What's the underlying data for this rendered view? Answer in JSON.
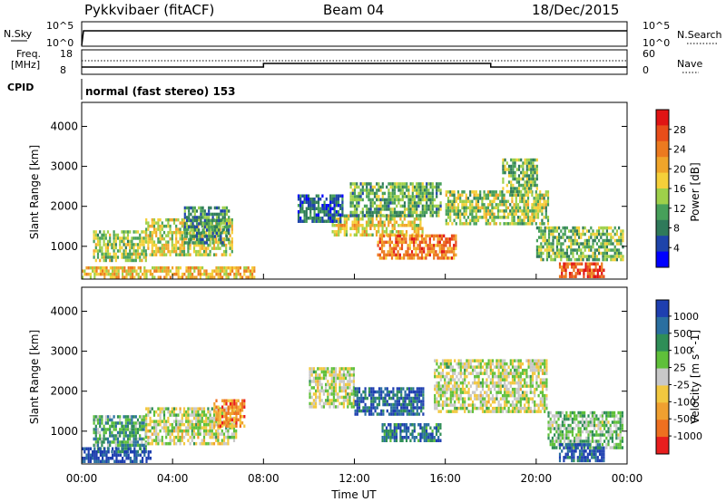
{
  "header": {
    "radar": "Pykkvibaer (fitACF)",
    "beam": "Beam 04",
    "date": "18/Dec/2015"
  },
  "nsky_panel": {
    "left_label": "N.Sky",
    "left_ticks": [
      "10^5",
      "10^0"
    ],
    "right_label": "N.Search",
    "right_ticks": [
      "10^5",
      "10^0"
    ]
  },
  "freq_panel": {
    "left_label_1": "Freq.",
    "left_label_2": "[MHz]",
    "left_ticks": [
      "18",
      "8"
    ],
    "right_label": "Nave",
    "right_ticks": [
      "60",
      "0"
    ]
  },
  "cpid_panel": {
    "label": "CPID",
    "mode": "normal (fast stereo) 153"
  },
  "chart_data": [
    {
      "type": "heatmap",
      "title": "",
      "xlabel": "Time UT",
      "ylabel": "Slant Range [km]",
      "x_ticks": [
        "00:00",
        "04:00",
        "08:00",
        "12:00",
        "16:00",
        "20:00",
        "00:00"
      ],
      "y_ticks": [
        1000,
        2000,
        3000,
        4000
      ],
      "ylim": [
        180,
        4600
      ],
      "colorbar": {
        "label": "Power [dB]",
        "ticks": [
          4,
          8,
          12,
          16,
          20,
          24,
          28
        ],
        "range": [
          0,
          32
        ],
        "colors": [
          "#0000ff",
          "#1e44aa",
          "#2f7a5a",
          "#47a05a",
          "#9ed04a",
          "#f5d03a",
          "#f0a52a",
          "#ec7a1f",
          "#e84d1a",
          "#e01414"
        ]
      },
      "regions": [
        {
          "t0": 0.5,
          "t1": 2.8,
          "r0": 650,
          "r1": 1400,
          "level": 0.45
        },
        {
          "t0": 2.8,
          "t1": 6.6,
          "r0": 800,
          "r1": 1700,
          "level": 0.5
        },
        {
          "t0": 4.5,
          "t1": 6.5,
          "r0": 1100,
          "r1": 2000,
          "level": 0.3
        },
        {
          "t0": 0.0,
          "t1": 7.6,
          "r0": 200,
          "r1": 500,
          "level": 0.6
        },
        {
          "t0": 11.0,
          "t1": 15.0,
          "r0": 1300,
          "r1": 1800,
          "level": 0.55
        },
        {
          "t0": 11.8,
          "t1": 15.8,
          "r0": 1800,
          "r1": 2600,
          "level": 0.35
        },
        {
          "t0": 13.0,
          "t1": 16.5,
          "r0": 700,
          "r1": 1300,
          "level": 0.75
        },
        {
          "t0": 16.0,
          "t1": 20.5,
          "r0": 1600,
          "r1": 2400,
          "level": 0.45
        },
        {
          "t0": 18.5,
          "t1": 20.0,
          "r0": 2400,
          "r1": 3200,
          "level": 0.4
        },
        {
          "t0": 20.0,
          "t1": 23.8,
          "r0": 700,
          "r1": 1500,
          "level": 0.4
        },
        {
          "t0": 21.0,
          "t1": 23.0,
          "r0": 250,
          "r1": 600,
          "level": 0.85
        },
        {
          "t0": 9.5,
          "t1": 11.5,
          "r0": 1600,
          "r1": 2300,
          "level": 0.2
        }
      ]
    },
    {
      "type": "heatmap",
      "title": "",
      "xlabel": "Time UT",
      "ylabel": "Slant Range [km]",
      "x_ticks": [
        "00:00",
        "04:00",
        "08:00",
        "12:00",
        "16:00",
        "20:00",
        "00:00"
      ],
      "y_ticks": [
        1000,
        2000,
        3000,
        4000
      ],
      "ylim": [
        180,
        4600
      ],
      "colorbar": {
        "label": "Velocity [m s^-1]",
        "ticks": [
          "1000",
          "500",
          "100",
          "25",
          "-25",
          "-100",
          "-500",
          "-1000"
        ],
        "colors": [
          "#1e3fb0",
          "#2a6fa0",
          "#2f8e57",
          "#5fc03a",
          "#c8c8c8",
          "#f2c840",
          "#f0a030",
          "#ee7020",
          "#e81e1e"
        ]
      },
      "regions": [
        {
          "t0": 0.5,
          "t1": 2.8,
          "r0": 450,
          "r1": 1400,
          "level": 0.3
        },
        {
          "t0": 2.8,
          "t1": 6.8,
          "r0": 700,
          "r1": 1600,
          "level": 0.5
        },
        {
          "t0": 5.8,
          "t1": 7.2,
          "r0": 1100,
          "r1": 1800,
          "level": 0.75
        },
        {
          "t0": 10.0,
          "t1": 12.0,
          "r0": 1600,
          "r1": 2600,
          "level": 0.5
        },
        {
          "t0": 12.0,
          "t1": 15.0,
          "r0": 1400,
          "r1": 2100,
          "level": 0.15
        },
        {
          "t0": 13.2,
          "t1": 15.8,
          "r0": 800,
          "r1": 1200,
          "level": 0.2
        },
        {
          "t0": 15.5,
          "t1": 20.5,
          "r0": 1500,
          "r1": 2800,
          "level": 0.5
        },
        {
          "t0": 20.5,
          "t1": 23.8,
          "r0": 600,
          "r1": 1500,
          "level": 0.4
        },
        {
          "t0": 21.0,
          "t1": 23.0,
          "r0": 300,
          "r1": 700,
          "level": 0.1
        },
        {
          "t0": 0.0,
          "t1": 3.0,
          "r0": 250,
          "r1": 600,
          "level": 0.05
        }
      ]
    }
  ]
}
